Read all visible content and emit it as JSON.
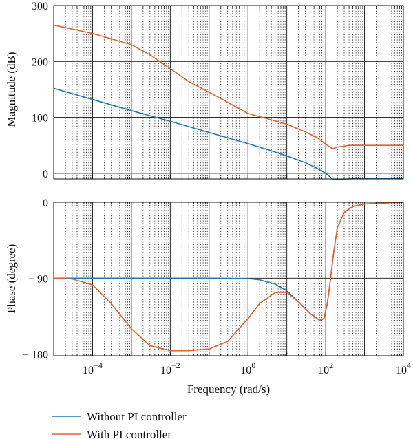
{
  "chart_data": [
    {
      "type": "line",
      "ylabel": "Magnitude (dB)",
      "x_scale": "log",
      "xlim": [
        1e-05,
        10000
      ],
      "ylim": [
        -10,
        300
      ],
      "yticks": [
        0,
        100,
        200,
        300
      ],
      "ytick_labels": [
        "0",
        "100",
        "200",
        "300"
      ],
      "grid": true,
      "series": [
        {
          "name": "Without PI controller",
          "color": "#1f77b4",
          "x": [
            1e-05,
            0.0001,
            0.001,
            0.01,
            0.1,
            1,
            3,
            10,
            30,
            60,
            100,
            150,
            200,
            400,
            1000,
            10000
          ],
          "y": [
            152,
            132,
            112,
            93,
            73,
            53,
            43,
            31,
            19,
            9,
            0,
            -10,
            -11,
            -10,
            -9,
            -9
          ]
        },
        {
          "name": "With PI controller",
          "color": "#e2622b",
          "x": [
            1e-05,
            0.0001,
            0.001,
            0.003,
            0.01,
            0.03,
            0.1,
            0.3,
            1,
            3,
            10,
            30,
            60,
            100,
            150,
            200,
            400,
            1000,
            10000
          ],
          "y": [
            265,
            250,
            230,
            212,
            187,
            164,
            145,
            127,
            107,
            98,
            88,
            74,
            64,
            52,
            44,
            47,
            50,
            50,
            50
          ]
        }
      ]
    },
    {
      "type": "line",
      "xlabel": "Frequency (rad/s)",
      "ylabel": "Phase (degree)",
      "x_scale": "log",
      "xlim": [
        1e-05,
        10000
      ],
      "ylim": [
        -182,
        0
      ],
      "yticks": [
        0,
        -90,
        -180
      ],
      "ytick_labels": [
        "0",
        "− 90",
        "− 180"
      ],
      "xticks": [
        0.0001,
        0.01,
        1,
        100,
        10000
      ],
      "xtick_labels": [
        {
          "base": "10",
          "exp": "−4"
        },
        {
          "base": "10",
          "exp": "−2"
        },
        {
          "base": "10",
          "exp": "0"
        },
        {
          "base": "10",
          "exp": "2"
        },
        {
          "base": "10",
          "exp": "4"
        }
      ],
      "grid": true,
      "series": [
        {
          "name": "Without PI controller",
          "color": "#1f77b4",
          "x": [
            1e-05,
            0.001,
            0.1,
            1,
            2,
            5,
            10,
            20,
            40,
            70,
            90,
            110,
            130,
            160,
            200,
            300,
            500,
            1000,
            3000,
            10000
          ],
          "y": [
            -90,
            -90,
            -90,
            -90.5,
            -92,
            -97,
            -105,
            -118,
            -132,
            -140,
            -138,
            -120,
            -95,
            -60,
            -30,
            -12,
            -5,
            -2,
            -1,
            0
          ]
        },
        {
          "name": "With PI controller",
          "color": "#e2622b",
          "x": [
            1e-05,
            3e-05,
            0.0001,
            0.0003,
            0.001,
            0.003,
            0.01,
            0.03,
            0.1,
            0.3,
            1,
            2,
            5,
            10,
            20,
            40,
            70,
            90,
            110,
            130,
            160,
            200,
            300,
            500,
            1000,
            3000,
            10000
          ],
          "y": [
            -90,
            -91,
            -98,
            -120,
            -150,
            -170,
            -176,
            -176,
            -174,
            -165,
            -138,
            -120,
            -107,
            -107,
            -118,
            -132,
            -140,
            -138,
            -120,
            -95,
            -60,
            -30,
            -12,
            -5,
            -2,
            -1,
            0
          ]
        }
      ]
    }
  ],
  "legend": {
    "position": "bottom-left",
    "items": [
      {
        "label": "Without PI controller",
        "color": "#1f77b4"
      },
      {
        "label": "With PI controller",
        "color": "#e2622b"
      }
    ]
  }
}
